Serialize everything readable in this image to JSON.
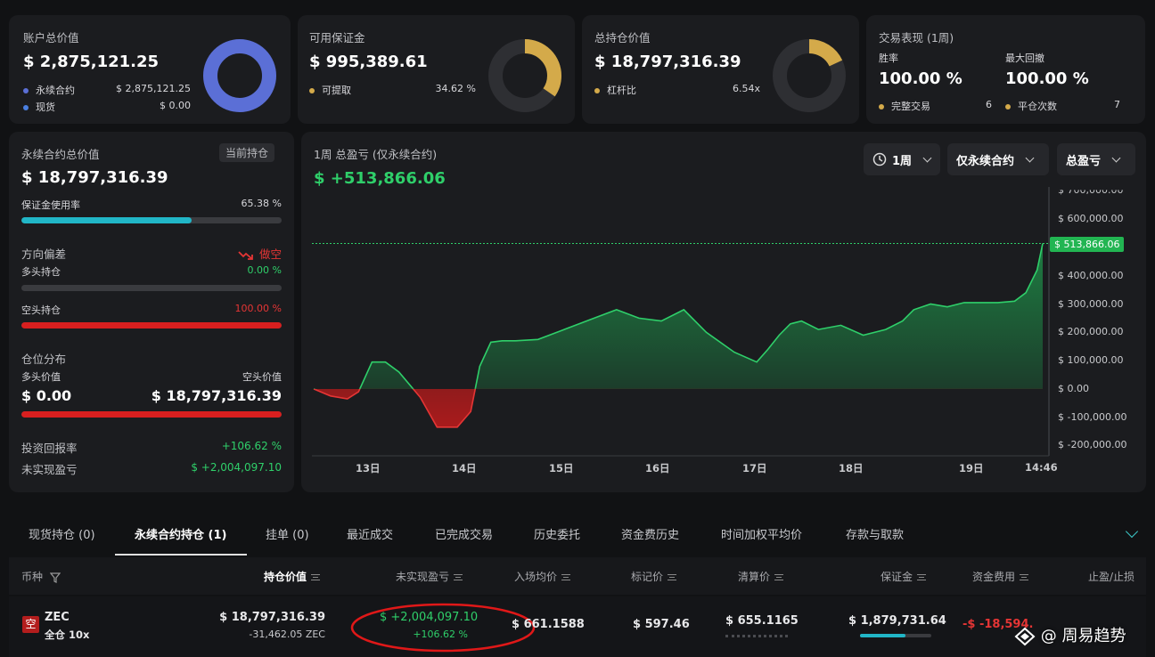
{
  "account_value": {
    "title": "账户总价值",
    "value": "$ 2,875,121.25",
    "legend": [
      {
        "label": "永续合约",
        "value": "$ 2,875,121.25"
      },
      {
        "label": "现货",
        "value": "$ 0.00"
      }
    ],
    "colors": {
      "perp": "#5b6fd6",
      "spot": "#4a7fe0"
    }
  },
  "available_margin": {
    "title": "可用保证金",
    "value": "$ 995,389.61",
    "legend": [
      {
        "label": "可提取",
        "value": "34.62 %"
      }
    ],
    "ratio": 0.3462,
    "color": "#d4aa4a"
  },
  "position_value": {
    "title": "总持仓价值",
    "value": "$ 18,797,316.39",
    "legend": [
      {
        "label": "杠杆比",
        "value": "6.54x"
      }
    ],
    "ratio": 0.18,
    "color": "#d4aa4a"
  },
  "performance": {
    "title": "交易表现 (1周)",
    "win_rate_label": "胜率",
    "win_rate": "100.00 %",
    "max_dd_label": "最大回撤",
    "max_dd": "100.00 %",
    "full_trades_label": "完整交易",
    "full_trades": "6",
    "close_count_label": "平仓次数",
    "close_count": "7"
  },
  "perp": {
    "title": "永续合约总价值",
    "badge": "当前持仓",
    "value": "$ 18,797,316.39",
    "margin_usage_label": "保证金使用率",
    "margin_usage": "65.38 %",
    "margin_usage_ratio": 0.6538,
    "direction_label": "方向偏差",
    "direction": "做空",
    "long_label": "多头持仓",
    "long_pct": "0.00 %",
    "long_ratio": 0,
    "short_label": "空头持仓",
    "short_pct": "100.00 %",
    "short_ratio": 1,
    "distribution_label": "仓位分布",
    "long_value_label": "多头价值",
    "short_value_label": "空头价值",
    "long_value": "$ 0.00",
    "short_value": "$ 18,797,316.39",
    "distribution_ratio": 1,
    "roi_label": "投资回报率",
    "roi": "+106.62 %",
    "upnl_label": "未实现盈亏",
    "upnl": "$ +2,004,097.10"
  },
  "chart": {
    "title": "1周 总盈亏 (仅永续合约)",
    "value": "$ +513,866.06",
    "dropdowns": [
      "1周",
      "仅永续合约",
      "总盈亏"
    ],
    "last_label": "$ 513,866.06"
  },
  "chart_data": {
    "type": "area",
    "title": "1周 总盈亏 (仅永续合约)",
    "x_ticks": [
      "13日",
      "14日",
      "15日",
      "16日",
      "17日",
      "18日",
      "19日",
      "14:46"
    ],
    "y_ticks": [
      "$ 700,000.00",
      "$ 600,000.00",
      "$ 500,000.00",
      "$ 400,000.00",
      "$ 300,000.00",
      "$ 200,000.00",
      "$ 100,000.00",
      "$ 0.00",
      "$ -100,000.00",
      "$ -200,000.00"
    ],
    "ylim": [
      -230000,
      720000
    ],
    "x": [
      0.0,
      0.15,
      0.3,
      0.4,
      0.52,
      0.64,
      0.76,
      0.95,
      1.1,
      1.28,
      1.4,
      1.48,
      1.58,
      1.68,
      1.8,
      2.0,
      2.2,
      2.5,
      2.7,
      2.9,
      3.1,
      3.3,
      3.5,
      3.75,
      3.95,
      4.05,
      4.15,
      4.25,
      4.35,
      4.5,
      4.7,
      4.9,
      5.1,
      5.25,
      5.35,
      5.5,
      5.65,
      5.8,
      5.95,
      6.1,
      6.25,
      6.35,
      6.45,
      6.5
    ],
    "y": [
      0,
      -25000,
      -35000,
      -10000,
      95000,
      95000,
      60000,
      -30000,
      -135000,
      -135000,
      -80000,
      80000,
      165000,
      170000,
      170000,
      175000,
      205000,
      250000,
      280000,
      250000,
      240000,
      280000,
      200000,
      130000,
      95000,
      140000,
      190000,
      230000,
      240000,
      210000,
      225000,
      190000,
      210000,
      240000,
      280000,
      300000,
      290000,
      305000,
      305000,
      305000,
      310000,
      340000,
      420000,
      513866
    ],
    "last_value": 513866.06
  },
  "tabs": [
    "现货持仓 (0)",
    "永续合约持仓 (1)",
    "挂单 (0)",
    "最近成交",
    "已完成交易",
    "历史委托",
    "资金费历史",
    "时间加权平均价",
    "存款与取款"
  ],
  "table": {
    "headers": [
      "币种",
      "持仓价值",
      "未实现盈亏",
      "入场均价",
      "标记价",
      "清算价",
      "保证金",
      "资金费用",
      "止盈/止损"
    ],
    "row": {
      "badge": "空",
      "coin": "ZEC",
      "mode": "全仓 10x",
      "value": "$ 18,797,316.39",
      "size": "-31,462.05 ZEC",
      "upnl": "$ +2,004,097.10",
      "upnl_pct": "+106.62 %",
      "entry": "$ 661.1588",
      "mark": "$ 597.46",
      "liq": "$ 655.1165",
      "margin": "$ 1,879,731.64",
      "funding": "-$ -18,594.25"
    }
  },
  "watermark": "@ 周易趋势"
}
